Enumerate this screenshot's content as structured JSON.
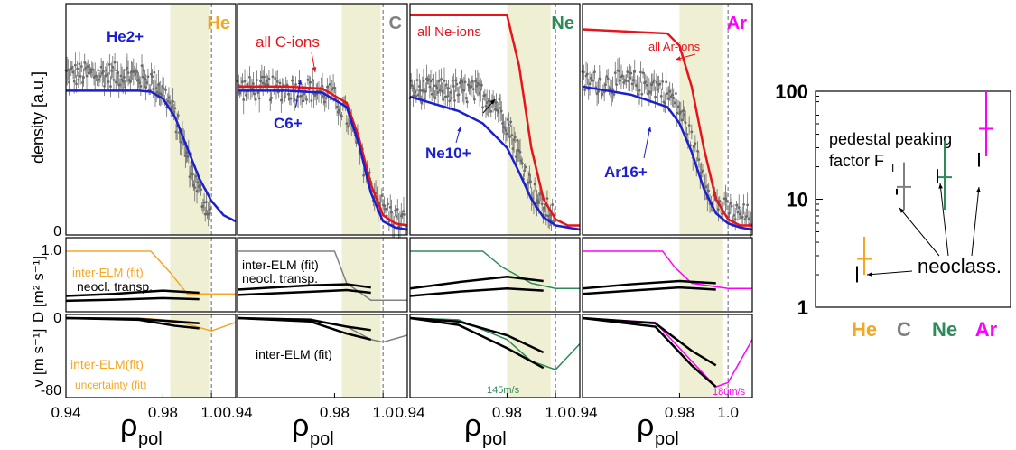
{
  "colors": {
    "He": "#f5a623",
    "C": "#808080",
    "Ne": "#2e8b57",
    "Ar": "#ff00ff",
    "all_ions": "#e8131b",
    "measured": "#1a1fd1",
    "band": "#efefd4",
    "data_points": "#6b6b6b",
    "neocl": "#000000"
  },
  "labels": {
    "density_axis": "density [a.u.]",
    "D_axis": "D [m² s⁻¹]",
    "v_axis": "v [m s⁻¹]",
    "rho": "ρ",
    "rho_sub": "pol"
  },
  "chart_data": [
    {
      "type": "line",
      "panel": "He",
      "title": "He",
      "xlim": [
        0.94,
        1.01
      ],
      "x_ticks": [
        "0.94",
        "0.98",
        "1.0"
      ],
      "band": [
        0.983,
        0.999
      ],
      "density": {
        "y_ticks": [
          "0"
        ],
        "series": [
          {
            "name": "He2+",
            "x": [
              0.94,
              0.95,
              0.96,
              0.97,
              0.975,
              0.98,
              0.985,
              0.99,
              0.995,
              1.0,
              1.005,
              1.01
            ],
            "values": [
              0.68,
              0.68,
              0.68,
              0.68,
              0.675,
              0.64,
              0.55,
              0.4,
              0.25,
              0.14,
              0.07,
              0.04
            ]
          }
        ],
        "scatter": {
          "x_start": 0.94,
          "x_end": 1.0,
          "level_high": 0.76,
          "level_low": 0.03,
          "drop_center": 0.989
        }
      },
      "D": {
        "y_ticks": [
          "1.0"
        ],
        "series": [
          {
            "name": "inter-ELM (fit)",
            "x": [
              0.94,
              0.975,
              0.983,
              0.99,
              1.0,
              1.01
            ],
            "values": [
              1.0,
              1.0,
              0.6,
              0.2,
              0.2,
              0.2
            ]
          },
          {
            "name": "neocl. transp. upper",
            "x": [
              0.94,
              0.96,
              0.98,
              0.995
            ],
            "values": [
              0.16,
              0.2,
              0.26,
              0.22
            ]
          },
          {
            "name": "neocl. transp. lower",
            "x": [
              0.94,
              0.96,
              0.98,
              0.995
            ],
            "values": [
              0.07,
              0.09,
              0.12,
              0.1
            ]
          }
        ],
        "annotations": [
          "inter-ELM (fit)",
          "neocl. transp."
        ]
      },
      "v": {
        "y_ticks": [
          "0",
          "-80"
        ],
        "series": [
          {
            "name": "inter-ELM(fit)",
            "x": [
              0.94,
              0.97,
              0.985,
              1.0,
              1.01
            ],
            "values": [
              0,
              0,
              -3,
              -15,
              -5
            ]
          },
          {
            "name": "neocl upper",
            "x": [
              0.94,
              0.97,
              0.985,
              0.995
            ],
            "values": [
              0,
              -1,
              -4,
              -6
            ]
          },
          {
            "name": "neocl lower",
            "x": [
              0.94,
              0.97,
              0.985,
              0.995
            ],
            "values": [
              0,
              -2,
              -9,
              -12
            ]
          }
        ],
        "annotations": [
          "inter-ELM(fit)",
          "uncertainty (fit)"
        ]
      }
    },
    {
      "type": "line",
      "panel": "C",
      "title": "C",
      "xlim": [
        0.94,
        1.01
      ],
      "x_ticks": [
        "0.94",
        "0.98",
        "1.0"
      ],
      "band": [
        0.983,
        0.999
      ],
      "density": {
        "series": [
          {
            "name": "all C-ions",
            "x": [
              0.94,
              0.96,
              0.975,
              0.985,
              0.99,
              0.995,
              1.0,
              1.005,
              1.01
            ],
            "values": [
              0.7,
              0.7,
              0.69,
              0.62,
              0.45,
              0.22,
              0.07,
              0.03,
              0.02
            ]
          },
          {
            "name": "C6+",
            "x": [
              0.94,
              0.96,
              0.975,
              0.985,
              0.99,
              0.995,
              1.0,
              1.005,
              1.01
            ],
            "values": [
              0.68,
              0.68,
              0.67,
              0.6,
              0.42,
              0.18,
              0.04,
              0.01,
              0.0
            ]
          }
        ],
        "scatter": {
          "x_start": 0.94,
          "x_end": 1.01,
          "level_high": 0.69,
          "level_low": 0.03,
          "drop_center": 0.991
        }
      },
      "D": {
        "series": [
          {
            "name": "inter-ELM (fit)",
            "x": [
              0.94,
              0.98,
              0.985,
              0.995,
              1.01
            ],
            "values": [
              1.0,
              1.0,
              0.4,
              0.08,
              0.08
            ]
          },
          {
            "name": "neocl upper",
            "x": [
              0.94,
              0.97,
              0.985,
              0.995
            ],
            "values": [
              0.28,
              0.36,
              0.38,
              0.32
            ]
          },
          {
            "name": "neocl lower",
            "x": [
              0.94,
              0.97,
              0.985,
              0.995
            ],
            "values": [
              0.18,
              0.24,
              0.27,
              0.22
            ]
          }
        ],
        "annotations": [
          "inter-ELM (fit)",
          "neocl. transp."
        ]
      },
      "v": {
        "series": [
          {
            "name": "inter-ELM (fit)",
            "x": [
              0.94,
              0.97,
              0.985,
              0.995,
              1.0,
              1.01
            ],
            "values": [
              0,
              -1,
              -10,
              -25,
              -28,
              -20
            ]
          },
          {
            "name": "neocl upper",
            "x": [
              0.94,
              0.97,
              0.985,
              0.995
            ],
            "values": [
              0,
              -2,
              -10,
              -14
            ]
          },
          {
            "name": "neocl lower",
            "x": [
              0.94,
              0.97,
              0.985,
              0.995
            ],
            "values": [
              0,
              -4,
              -18,
              -25
            ]
          }
        ],
        "annotations": [
          "inter-ELM (fit)"
        ]
      }
    },
    {
      "type": "line",
      "panel": "Ne",
      "title": "Ne",
      "xlim": [
        0.94,
        1.01
      ],
      "x_ticks": [
        "0.94",
        "0.98",
        "1.0"
      ],
      "band": [
        0.98,
        0.998
      ],
      "density": {
        "series": [
          {
            "name": "all Ne-ions",
            "x": [
              0.94,
              0.97,
              0.975,
              0.98,
              0.985,
              0.99,
              0.995,
              1.0,
              1.005,
              1.01
            ],
            "values": [
              3.0,
              2.0,
              1.8,
              1.3,
              0.8,
              0.4,
              0.15,
              0.05,
              0.02,
              0.02
            ]
          },
          {
            "name": "Ne10+",
            "x": [
              0.94,
              0.96,
              0.97,
              0.98,
              0.985,
              0.99,
              0.995,
              1.0,
              1.005,
              1.01
            ],
            "values": [
              0.65,
              0.58,
              0.52,
              0.4,
              0.28,
              0.15,
              0.06,
              0.02,
              0.01,
              0.0
            ]
          }
        ],
        "scatter": {
          "x_start": 0.94,
          "x_end": 1.0,
          "level_high": 0.68,
          "level_low": 0.05,
          "drop_center": 0.985
        }
      },
      "D": {
        "series": [
          {
            "name": "inter-ELM (fit)",
            "x": [
              0.94,
              0.97,
              0.978,
              0.99,
              1.0,
              1.01
            ],
            "values": [
              1.0,
              1.0,
              0.7,
              0.4,
              0.3,
              0.3
            ]
          },
          {
            "name": "neocl upper",
            "x": [
              0.94,
              0.96,
              0.98,
              0.995
            ],
            "values": [
              0.3,
              0.42,
              0.52,
              0.44
            ]
          },
          {
            "name": "neocl lower",
            "x": [
              0.94,
              0.96,
              0.98,
              0.995
            ],
            "values": [
              0.16,
              0.24,
              0.3,
              0.26
            ]
          }
        ]
      },
      "v": {
        "series": [
          {
            "name": "inter-ELM (fit)",
            "x": [
              0.94,
              0.96,
              0.98,
              0.99,
              1.0,
              1.01
            ],
            "values": [
              0,
              -2,
              -25,
              -50,
              -60,
              -30
            ]
          },
          {
            "name": "neocl upper",
            "x": [
              0.94,
              0.96,
              0.98,
              0.995
            ],
            "values": [
              0,
              -4,
              -20,
              -40
            ]
          },
          {
            "name": "neocl lower",
            "x": [
              0.94,
              0.96,
              0.98,
              0.995
            ],
            "values": [
              0,
              -8,
              -35,
              -58
            ]
          }
        ],
        "annotations": [
          "145m/s"
        ]
      }
    },
    {
      "type": "line",
      "panel": "Ar",
      "title": "Ar",
      "xlim": [
        0.94,
        1.01
      ],
      "x_ticks": [
        "0.94",
        "0.98",
        "1.0"
      ],
      "band": [
        0.98,
        0.998
      ],
      "density": {
        "series": [
          {
            "name": "all Ar-ions",
            "x": [
              0.94,
              0.975,
              0.98,
              0.985,
              0.99,
              0.995,
              1.0,
              1.005,
              1.01
            ],
            "values": [
              0.98,
              0.96,
              0.9,
              0.7,
              0.4,
              0.15,
              0.05,
              0.02,
              0.02
            ]
          },
          {
            "name": "Ar16+",
            "x": [
              0.94,
              0.96,
              0.975,
              0.98,
              0.985,
              0.99,
              0.995,
              1.0,
              1.005,
              1.01
            ],
            "values": [
              0.7,
              0.66,
              0.6,
              0.52,
              0.38,
              0.2,
              0.08,
              0.03,
              0.01,
              0.0
            ]
          }
        ],
        "scatter": {
          "x_start": 0.94,
          "x_end": 1.01,
          "level_high": 0.72,
          "level_low": 0.06,
          "drop_center": 0.986
        }
      },
      "D": {
        "series": [
          {
            "name": "inter-ELM (fit)",
            "x": [
              0.94,
              0.973,
              0.978,
              0.985,
              1.0,
              1.01
            ],
            "values": [
              1.0,
              1.0,
              0.7,
              0.4,
              0.3,
              0.3
            ]
          },
          {
            "name": "neocl upper",
            "x": [
              0.94,
              0.96,
              0.98,
              0.995
            ],
            "values": [
              0.3,
              0.38,
              0.44,
              0.4
            ]
          },
          {
            "name": "neocl lower",
            "x": [
              0.94,
              0.96,
              0.98,
              0.995
            ],
            "values": [
              0.2,
              0.26,
              0.32,
              0.28
            ]
          }
        ]
      },
      "v": {
        "series": [
          {
            "name": "inter-ELM (fit)",
            "x": [
              0.94,
              0.97,
              0.985,
              0.995,
              1.0,
              1.01
            ],
            "values": [
              0,
              -5,
              -50,
              -80,
              -75,
              -25
            ]
          },
          {
            "name": "neocl upper",
            "x": [
              0.94,
              0.97,
              0.985,
              0.995
            ],
            "values": [
              0,
              -6,
              -38,
              -55
            ]
          },
          {
            "name": "neocl lower",
            "x": [
              0.94,
              0.97,
              0.985,
              0.995
            ],
            "values": [
              0,
              -10,
              -55,
              -80
            ]
          }
        ],
        "annotations": [
          "180m/s"
        ]
      }
    },
    {
      "type": "scatter",
      "panel": "peaking",
      "title": "pedestal peaking factor F",
      "title_line1": "pedestal peaking",
      "title_line2": "factor F",
      "title_sub": "I",
      "y_scale": "log",
      "ylim": [
        1,
        100
      ],
      "y_ticks": [
        "1",
        "10",
        "100"
      ],
      "categories": [
        "He",
        "C",
        "Ne",
        "Ar"
      ],
      "measured": [
        {
          "species": "He",
          "value": 2.8,
          "low": 2.0,
          "high": 4.5
        },
        {
          "species": "C",
          "value": 13,
          "low": 8,
          "high": 22
        },
        {
          "species": "Ne",
          "value": 16,
          "low": 8,
          "high": 35
        },
        {
          "species": "Ar",
          "value": 45,
          "low": 25,
          "high": 100
        }
      ],
      "neoclassical": [
        {
          "species": "He",
          "low": 1.7,
          "high": 2.4
        },
        {
          "species": "C",
          "low": 11,
          "high": 12.5
        },
        {
          "species": "Ne",
          "low": 14,
          "high": 19
        },
        {
          "species": "Ar",
          "low": 20,
          "high": 27
        }
      ],
      "annotation": "neoclass."
    }
  ]
}
